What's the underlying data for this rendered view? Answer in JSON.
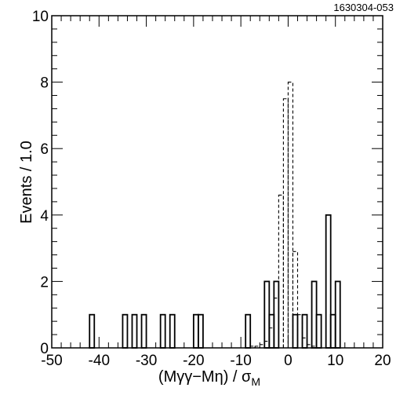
{
  "chart_data": {
    "type": "histogram",
    "figure_id": "1630304-053",
    "xlabel": "(Mγγ−Mη) / σ",
    "xlabel_sub": "M",
    "ylabel": "Events / 1.0",
    "xlim": [
      -50,
      20
    ],
    "ylim": [
      0,
      10
    ],
    "x_ticks": [
      "-50",
      "-40",
      "-30",
      "-20",
      "-10",
      "0",
      "10",
      "20"
    ],
    "y_ticks": [
      "0",
      "2",
      "4",
      "6",
      "8",
      "10"
    ],
    "grid": false,
    "series": [
      {
        "style": "solid",
        "bin_width": 1,
        "bins": [
          {
            "x": -42,
            "y": 1
          },
          {
            "x": -35,
            "y": 1
          },
          {
            "x": -33,
            "y": 1
          },
          {
            "x": -31,
            "y": 1
          },
          {
            "x": -27,
            "y": 1
          },
          {
            "x": -25,
            "y": 1
          },
          {
            "x": -20,
            "y": 1
          },
          {
            "x": -19,
            "y": 1
          },
          {
            "x": -9,
            "y": 1
          },
          {
            "x": -5,
            "y": 2
          },
          {
            "x": -4,
            "y": 1
          },
          {
            "x": -3,
            "y": 2
          },
          {
            "x": 1,
            "y": 1
          },
          {
            "x": 3,
            "y": 1
          },
          {
            "x": 5,
            "y": 2
          },
          {
            "x": 6,
            "y": 1
          },
          {
            "x": 8,
            "y": 4
          },
          {
            "x": 9,
            "y": 1
          },
          {
            "x": 10,
            "y": 2
          }
        ]
      },
      {
        "style": "dashed",
        "bin_width": 1,
        "bins": [
          {
            "x": -8,
            "y": 0.05
          },
          {
            "x": -7,
            "y": 0.05
          },
          {
            "x": -6,
            "y": 0.1
          },
          {
            "x": -5,
            "y": 0.2
          },
          {
            "x": -4,
            "y": 0.6
          },
          {
            "x": -3,
            "y": 1.5
          },
          {
            "x": -2,
            "y": 4.6
          },
          {
            "x": -1,
            "y": 7.5
          },
          {
            "x": 0,
            "y": 8.0
          },
          {
            "x": 1,
            "y": 2.9
          },
          {
            "x": 2,
            "y": 1.0
          },
          {
            "x": 3,
            "y": 0.3
          },
          {
            "x": 4,
            "y": 0.1
          },
          {
            "x": 5,
            "y": 0.05
          }
        ]
      }
    ]
  }
}
